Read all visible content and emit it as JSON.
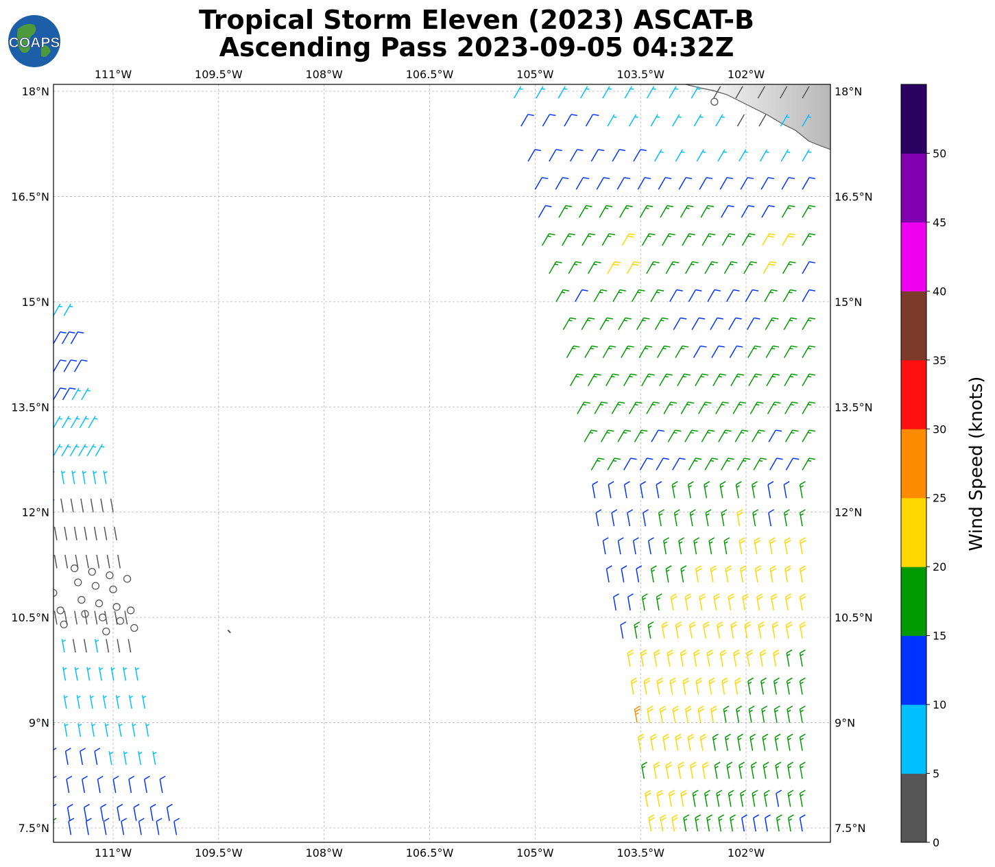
{
  "title_line1": "Tropical Storm Eleven (2023) ASCAT-B",
  "title_line2": "Ascending Pass 2023-09-05 04:32Z",
  "logo": {
    "text": "COAPS",
    "icon": "globe-icon"
  },
  "map": {
    "lon_ticks": [
      "111°W",
      "109.5°W",
      "108°W",
      "106.5°W",
      "105°W",
      "103.5°W",
      "102°W"
    ],
    "lat_ticks": [
      "18°N",
      "16.5°N",
      "15°N",
      "13.5°N",
      "12°N",
      "10.5°N",
      "9°N",
      "7.5°N"
    ],
    "land_color": "#ffffff",
    "grid": true
  },
  "colorbar": {
    "label": "Wind Speed (knots)",
    "ticks": [
      "0",
      "5",
      "10",
      "15",
      "20",
      "25",
      "30",
      "35",
      "40",
      "45",
      "50"
    ],
    "colors": [
      "#555555",
      "#00bfff",
      "#0033ff",
      "#009900",
      "#ffd700",
      "#ff8c00",
      "#ff1010",
      "#7b3a2a",
      "#ee00ee",
      "#8000b0",
      "#2a0060"
    ]
  },
  "wind_swaths": [
    {
      "region": "east",
      "rows": [
        {
          "lat": 17.9,
          "lon_range": [
            -105.3,
            -101.2
          ],
          "speeds": [
            8,
            8,
            8,
            7,
            8,
            8,
            8,
            7,
            8,
            3,
            3,
            3,
            0,
            3
          ]
        },
        {
          "lat": 17.5,
          "lon_range": [
            -105.2,
            -101.2
          ],
          "speeds": [
            12,
            12,
            12,
            12,
            8,
            8,
            8,
            8,
            8,
            8,
            3,
            3,
            8,
            8
          ]
        },
        {
          "lat": 17.0,
          "lon_range": [
            -105.1,
            -101.2
          ],
          "speeds": [
            12,
            12,
            12,
            12,
            12,
            12,
            8,
            8,
            8,
            8,
            8,
            8,
            8,
            8
          ]
        },
        {
          "lat": 16.6,
          "lon_range": [
            -105.0,
            -101.2
          ],
          "speeds": [
            12,
            12,
            12,
            12,
            12,
            12,
            12,
            12,
            12,
            12,
            12,
            12,
            12,
            12
          ]
        },
        {
          "lat": 16.2,
          "lon_range": [
            -104.95,
            -101.2
          ],
          "speeds": [
            12,
            17,
            17,
            17,
            17,
            17,
            17,
            17,
            17,
            12,
            12,
            12,
            17,
            17
          ]
        },
        {
          "lat": 15.8,
          "lon_range": [
            -104.9,
            -101.2
          ],
          "speeds": [
            17,
            17,
            17,
            17,
            22,
            17,
            17,
            17,
            17,
            17,
            17,
            22,
            22,
            17
          ]
        },
        {
          "lat": 15.4,
          "lon_range": [
            -104.8,
            -101.2
          ],
          "speeds": [
            17,
            17,
            17,
            22,
            22,
            17,
            17,
            17,
            17,
            17,
            17,
            22,
            17,
            12
          ]
        },
        {
          "lat": 15.0,
          "lon_range": [
            -104.7,
            -101.2
          ],
          "speeds": [
            17,
            12,
            17,
            17,
            17,
            17,
            12,
            12,
            12,
            12,
            12,
            17,
            17,
            12
          ]
        },
        {
          "lat": 14.6,
          "lon_range": [
            -104.6,
            -101.2
          ],
          "speeds": [
            17,
            17,
            17,
            17,
            17,
            17,
            12,
            12,
            12,
            12,
            12,
            17,
            17,
            17
          ]
        },
        {
          "lat": 14.2,
          "lon_range": [
            -104.55,
            -101.2
          ],
          "speeds": [
            17,
            17,
            17,
            17,
            17,
            17,
            17,
            12,
            12,
            12,
            17,
            17,
            17,
            17
          ]
        },
        {
          "lat": 13.8,
          "lon_range": [
            -104.5,
            -101.2
          ],
          "speeds": [
            17,
            17,
            17,
            17,
            17,
            17,
            17,
            17,
            17,
            17,
            17,
            17,
            17,
            17
          ]
        },
        {
          "lat": 13.4,
          "lon_range": [
            -104.4,
            -101.2
          ],
          "speeds": [
            17,
            17,
            17,
            17,
            17,
            17,
            17,
            17,
            17,
            17,
            17,
            17,
            17,
            17
          ]
        },
        {
          "lat": 13.0,
          "lon_range": [
            -104.3,
            -101.2
          ],
          "speeds": [
            17,
            17,
            17,
            17,
            12,
            17,
            17,
            17,
            17,
            17,
            17,
            12,
            17,
            17
          ]
        },
        {
          "lat": 12.6,
          "lon_range": [
            -104.2,
            -101.2
          ],
          "speeds": [
            17,
            17,
            12,
            12,
            12,
            12,
            17,
            17,
            17,
            17,
            17,
            12,
            12,
            17
          ]
        },
        {
          "lat": 12.2,
          "lon_range": [
            -104.15,
            -101.2
          ],
          "speeds": [
            12,
            12,
            12,
            12,
            12,
            17,
            17,
            17,
            17,
            17,
            17,
            12,
            12,
            17
          ]
        },
        {
          "lat": 11.8,
          "lon_range": [
            -104.1,
            -101.2
          ],
          "speeds": [
            12,
            12,
            12,
            12,
            17,
            17,
            17,
            17,
            17,
            22,
            17,
            12,
            17,
            17
          ]
        },
        {
          "lat": 11.4,
          "lon_range": [
            -104.0,
            -101.2
          ],
          "speeds": [
            12,
            12,
            12,
            12,
            17,
            17,
            17,
            17,
            17,
            22,
            22,
            22,
            22,
            22
          ]
        },
        {
          "lat": 11.0,
          "lon_range": [
            -103.95,
            -101.2
          ],
          "speeds": [
            12,
            12,
            12,
            17,
            17,
            17,
            22,
            22,
            22,
            22,
            22,
            22,
            22,
            22
          ]
        },
        {
          "lat": 10.6,
          "lon_range": [
            -103.85,
            -101.2
          ],
          "speeds": [
            12,
            12,
            17,
            17,
            22,
            22,
            22,
            22,
            22,
            22,
            22,
            22,
            22,
            22
          ]
        },
        {
          "lat": 10.2,
          "lon_range": [
            -103.75,
            -101.2
          ],
          "speeds": [
            12,
            17,
            17,
            22,
            22,
            22,
            22,
            22,
            22,
            22,
            22,
            22,
            22,
            22
          ]
        },
        {
          "lat": 9.8,
          "lon_range": [
            -103.65,
            -101.2
          ],
          "speeds": [
            22,
            22,
            22,
            22,
            22,
            22,
            22,
            22,
            22,
            22,
            22,
            22,
            17,
            17
          ]
        },
        {
          "lat": 9.4,
          "lon_range": [
            -103.6,
            -101.2
          ],
          "speeds": [
            22,
            22,
            22,
            22,
            22,
            22,
            22,
            22,
            22,
            17,
            17,
            17,
            17,
            17
          ]
        },
        {
          "lat": 9.0,
          "lon_range": [
            -103.55,
            -101.2
          ],
          "speeds": [
            27,
            22,
            22,
            22,
            22,
            22,
            22,
            17,
            17,
            17,
            17,
            17,
            17,
            17
          ]
        },
        {
          "lat": 8.6,
          "lon_range": [
            -103.5,
            -101.2
          ],
          "speeds": [
            22,
            22,
            22,
            22,
            22,
            22,
            17,
            17,
            17,
            17,
            17,
            17,
            17,
            17
          ]
        },
        {
          "lat": 8.2,
          "lon_range": [
            -103.45,
            -101.2
          ],
          "speeds": [
            17,
            22,
            22,
            22,
            22,
            22,
            17,
            17,
            17,
            17,
            17,
            17,
            17,
            17
          ]
        },
        {
          "lat": 7.8,
          "lon_range": [
            -103.4,
            -101.2
          ],
          "speeds": [
            22,
            22,
            22,
            22,
            17,
            17,
            17,
            17,
            17,
            17,
            17,
            12,
            17,
            17
          ]
        },
        {
          "lat": 7.45,
          "lon_range": [
            -103.35,
            -101.2
          ],
          "speeds": [
            22,
            22,
            22,
            17,
            17,
            17,
            17,
            17,
            12,
            12,
            12,
            17,
            17,
            12
          ]
        }
      ]
    },
    {
      "region": "west",
      "rows": [
        {
          "lat": 14.8,
          "lon_range": [
            -111.85,
            -111.7
          ],
          "speeds": [
            8,
            8
          ]
        },
        {
          "lat": 14.4,
          "lon_range": [
            -111.85,
            -111.6
          ],
          "speeds": [
            12,
            12,
            12
          ]
        },
        {
          "lat": 14.0,
          "lon_range": [
            -111.85,
            -111.55
          ],
          "speeds": [
            12,
            12,
            12
          ]
        },
        {
          "lat": 13.6,
          "lon_range": [
            -111.85,
            -111.45
          ],
          "speeds": [
            12,
            12,
            8,
            8
          ]
        },
        {
          "lat": 13.2,
          "lon_range": [
            -111.85,
            -111.35
          ],
          "speeds": [
            8,
            8,
            8,
            8,
            8
          ]
        },
        {
          "lat": 12.8,
          "lon_range": [
            -111.85,
            -111.25
          ],
          "speeds": [
            8,
            8,
            8,
            8,
            8,
            8
          ]
        },
        {
          "lat": 12.4,
          "lon_range": [
            -111.85,
            -111.1
          ],
          "speeds": [
            8,
            8,
            8,
            8,
            8,
            8
          ]
        },
        {
          "lat": 12.0,
          "lon_range": [
            -111.85,
            -111.0
          ],
          "speeds": [
            8,
            3,
            3,
            3,
            3,
            3,
            3
          ]
        },
        {
          "lat": 11.6,
          "lon_range": [
            -111.8,
            -110.95
          ],
          "speeds": [
            3,
            3,
            3,
            3,
            3,
            3,
            3
          ]
        },
        {
          "lat": 11.2,
          "lon_range": [
            -111.8,
            -110.9
          ],
          "speeds": [
            3,
            3,
            3,
            3,
            3,
            3,
            3
          ]
        },
        {
          "lat": 10.4,
          "lon_range": [
            -111.8,
            -110.8
          ],
          "speeds": [
            3,
            3,
            3,
            3,
            3,
            3,
            3,
            3
          ]
        },
        {
          "lat": 10.0,
          "lon_range": [
            -111.85,
            -110.75
          ],
          "speeds": [
            3,
            8,
            3,
            3,
            8,
            3,
            3,
            3
          ]
        },
        {
          "lat": 9.6,
          "lon_range": [
            -111.85,
            -110.65
          ],
          "speeds": [
            3,
            8,
            8,
            8,
            8,
            8,
            8,
            8
          ]
        },
        {
          "lat": 9.2,
          "lon_range": [
            -111.85,
            -110.55
          ],
          "speeds": [
            3,
            8,
            8,
            8,
            8,
            8,
            8,
            8
          ]
        },
        {
          "lat": 8.8,
          "lon_range": [
            -111.85,
            -110.5
          ],
          "speeds": [
            8,
            8,
            8,
            8,
            8,
            8,
            8,
            8
          ]
        },
        {
          "lat": 8.4,
          "lon_range": [
            -111.85,
            -110.4
          ],
          "speeds": [
            12,
            12,
            12,
            12,
            8,
            8,
            8,
            8
          ]
        },
        {
          "lat": 8.0,
          "lon_range": [
            -111.85,
            -110.3
          ],
          "speeds": [
            12,
            12,
            12,
            12,
            12,
            12,
            12,
            12
          ]
        },
        {
          "lat": 7.6,
          "lon_range": [
            -111.85,
            -110.2
          ],
          "speeds": [
            12,
            12,
            12,
            12,
            12,
            12,
            12,
            12
          ]
        },
        {
          "lat": 7.4,
          "lon_range": [
            -111.85,
            -110.1
          ],
          "speeds": [
            17,
            12,
            12,
            12,
            12,
            12,
            12,
            12
          ]
        }
      ]
    }
  ],
  "calm_points": [
    {
      "lon": -111.55,
      "lat": 11.2
    },
    {
      "lon": -111.3,
      "lat": 11.15
    },
    {
      "lon": -111.05,
      "lat": 11.1
    },
    {
      "lon": -110.8,
      "lat": 11.05
    },
    {
      "lon": -111.5,
      "lat": 11.0
    },
    {
      "lon": -111.25,
      "lat": 10.95
    },
    {
      "lon": -111.0,
      "lat": 10.9
    },
    {
      "lon": -111.85,
      "lat": 10.85
    },
    {
      "lon": -111.45,
      "lat": 10.75
    },
    {
      "lon": -111.2,
      "lat": 10.7
    },
    {
      "lon": -110.95,
      "lat": 10.65
    },
    {
      "lon": -110.75,
      "lat": 10.6
    },
    {
      "lon": -111.75,
      "lat": 10.6
    },
    {
      "lon": -111.4,
      "lat": 10.55
    },
    {
      "lon": -111.15,
      "lat": 10.5
    },
    {
      "lon": -110.9,
      "lat": 10.45
    },
    {
      "lon": -111.7,
      "lat": 10.4
    },
    {
      "lon": -111.1,
      "lat": 10.3
    },
    {
      "lon": -110.7,
      "lat": 10.35
    },
    {
      "lon": -102.45,
      "lat": 17.85
    }
  ],
  "isolated_barb": {
    "lon": -109.35,
    "lat": 10.3,
    "speed": 3
  }
}
